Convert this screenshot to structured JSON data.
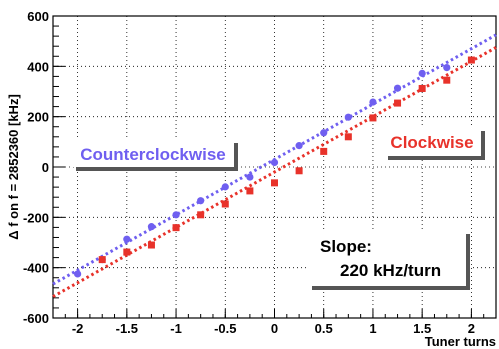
{
  "chart_data": {
    "type": "scatter",
    "xlabel": "Tuner turns",
    "ylabel": "Δ f on f = 2852360 [kHz]",
    "xlim": [
      -2.25,
      2.25
    ],
    "ylim": [
      -600,
      600
    ],
    "x_ticks": [
      -2,
      -1.5,
      -1,
      -0.5,
      0,
      0.5,
      1,
      1.5,
      2
    ],
    "x_tick_labels": [
      "-2",
      "-1.5",
      "-1",
      "-0.5",
      "0",
      "0.5",
      "1",
      "1.5",
      "2"
    ],
    "y_ticks": [
      -600,
      -400,
      -200,
      0,
      200,
      400,
      600
    ],
    "y_tick_labels": [
      "-600",
      "-400",
      "-200",
      "0",
      "200",
      "400",
      "600"
    ],
    "grid": true,
    "series": [
      {
        "name": "Counterclockwise",
        "color": "#6f5ff0",
        "marker": "circle",
        "x": [
          -2,
          -1.75,
          -1.5,
          -1.25,
          -1,
          -0.75,
          -0.5,
          -0.25,
          0,
          0.25,
          0.5,
          0.75,
          1,
          1.25,
          1.5,
          1.75
        ],
        "y": [
          -425,
          -368,
          -287,
          -237,
          -190,
          -134,
          -79,
          -40,
          18,
          85,
          136,
          198,
          258,
          313,
          372,
          395
        ],
        "fit": {
          "slope": 220,
          "intercept": 30
        }
      },
      {
        "name": "Clockwise",
        "color": "#e8322a",
        "marker": "square",
        "x": [
          -1.75,
          -1.5,
          -1.25,
          -1,
          -0.75,
          -0.5,
          -0.25,
          0,
          0.25,
          0.5,
          0.75,
          1,
          1.25,
          1.5,
          1.75,
          2
        ],
        "y": [
          -368,
          -338,
          -310,
          -241,
          -190,
          -147,
          -95,
          -63,
          -15,
          62,
          120,
          195,
          254,
          312,
          345,
          425
        ],
        "fit": {
          "slope": 220,
          "intercept": -20
        }
      }
    ],
    "annotation": {
      "line1": "Slope:",
      "line2": "220 kHz/turn"
    }
  }
}
